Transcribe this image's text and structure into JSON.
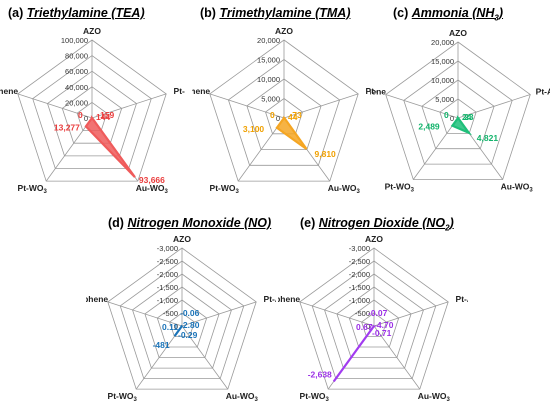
{
  "chart_data": [
    {
      "type": "radar",
      "panel_letter": "(a)",
      "title": "Triethylamine (TEA)",
      "axes": [
        "AZO",
        "Pt-AZO",
        "Au-WO3",
        "Pt-WO3",
        "N-Graphene"
      ],
      "axis_labels": [
        "AZO",
        "Pt-AZO",
        "Au-WO",
        "Pt-WO",
        "N-Graphene"
      ],
      "values": [
        144,
        159,
        93666,
        13277,
        0
      ],
      "value_labels": [
        "144",
        "159",
        "93,666",
        "13,277",
        "0"
      ],
      "rticks": [
        "0",
        "20,000",
        "40,000",
        "60,000",
        "80,000",
        "100,000"
      ],
      "rlim": [
        0,
        100000
      ],
      "color": "#ef5b5b",
      "label_color": "#ea3c3c"
    },
    {
      "type": "radar",
      "panel_letter": "(b)",
      "title": "Trimethylamine (TMA)",
      "axes": [
        "AZO",
        "Pt-AZO",
        "Au-WO3",
        "Pt-WO3",
        "N-Graphene"
      ],
      "axis_labels": [
        "AZO",
        "Pt-AZO",
        "Au-WO",
        "Pt-WO",
        "N-Graphene"
      ],
      "values": [
        44,
        73,
        9810,
        3100,
        0
      ],
      "value_labels": [
        "44",
        "73",
        "9,810",
        "3,100",
        "0"
      ],
      "rticks": [
        "0",
        "5,000",
        "10,000",
        "15,000",
        "20,000"
      ],
      "rlim": [
        0,
        20000
      ],
      "color": "#f5a623",
      "label_color": "#f0a000"
    },
    {
      "type": "radar",
      "panel_letter": "(c)",
      "title": "Ammonia (NH",
      "axes": [
        "AZO",
        "Pt-AZO",
        "Au-WO3",
        "Pt-WO3",
        "N-Graphene"
      ],
      "axis_labels": [
        "AZO",
        "Pt-AZO",
        "Au-WO",
        "Pt-WO",
        "N-Graphene"
      ],
      "values": [
        24,
        23,
        4821,
        2489,
        0
      ],
      "value_labels": [
        "24",
        "23",
        "4,821",
        "2,489",
        "0"
      ],
      "rticks": [
        "0",
        "5,000",
        "10,000",
        "15,000",
        "20,000"
      ],
      "rlim": [
        0,
        20000
      ],
      "color": "#1fbf7a",
      "label_color": "#12b36b"
    },
    {
      "type": "radar",
      "panel_letter": "(d)",
      "title": "Nitrogen Monoxide (NO)",
      "axes": [
        "AZO",
        "Pt-AZO",
        "Au-WO3",
        "Pt-WO3",
        "N-Graphene"
      ],
      "axis_labels": [
        "AZO",
        "Pt-AZO",
        "Au-WO",
        "Pt-WO",
        "N-Graphene"
      ],
      "values": [
        -0.06,
        -2.8,
        -0.29,
        -481,
        0.11
      ],
      "value_labels": [
        "-0.06",
        "-2.80",
        "-0.29",
        "-481",
        "0.11"
      ],
      "rticks": [
        "0",
        "-500",
        "-1,000",
        "-1,500",
        "-2,000",
        "-2,500",
        "-3,000"
      ],
      "rlim": [
        0,
        -3000
      ],
      "color": "#1a73b8",
      "label_color": "#1a73b8"
    },
    {
      "type": "radar",
      "panel_letter": "(e)",
      "title": "Nitrogen Dioxide (NO",
      "axes": [
        "AZO",
        "Pt-AZO",
        "Au-WO3",
        "Pt-WO3",
        "N-Graphene"
      ],
      "axis_labels": [
        "AZO",
        "Pt-AZO",
        "Au-WO",
        "Pt-WO",
        "N-Graphene"
      ],
      "values": [
        -0.07,
        -4.7,
        -0.71,
        -2638,
        0.67
      ],
      "value_labels": [
        "-0.07",
        "-4.70",
        "-0.71",
        "-2,638",
        "0.67"
      ],
      "rticks": [
        "0",
        "-500",
        "-1,000",
        "-1,500",
        "-2,000",
        "-2,500",
        "-3,000"
      ],
      "rlim": [
        0,
        -3000
      ],
      "color": "#a23cf0",
      "label_color": "#9b30e6"
    }
  ]
}
